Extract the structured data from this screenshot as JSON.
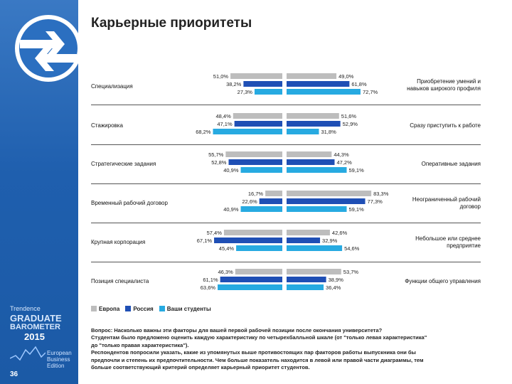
{
  "page": {
    "title": "Карьерные приоритеты",
    "page_number": "36"
  },
  "branding": {
    "line1": "Trendence",
    "line2": "GRADUATE",
    "line3": "BAROMETER",
    "year": "2015",
    "edition_line1": "European",
    "edition_line2": "Business",
    "edition_line3": "Edition"
  },
  "colors": {
    "europe": "#bdbdbd",
    "russia": "#1f4fb5",
    "students": "#27aae1",
    "sidebar": "#2563b0"
  },
  "legend": {
    "europe": "Европа",
    "russia": "Россия",
    "students": "Ваши студенты"
  },
  "chart_data": {
    "type": "bar",
    "orientation": "horizontal-diverging",
    "series_names": [
      "Европа",
      "Россия",
      "Ваши студенты"
    ],
    "groups": [
      {
        "left_label": "Специализация",
        "right_label": "Приобретение умений и\nнавыков широкого профиля",
        "left": [
          51.0,
          38.2,
          27.3
        ],
        "right": [
          49.0,
          61.8,
          72.7
        ],
        "left_text": [
          "51,0%",
          "38,2%",
          "27,3%"
        ],
        "right_text": [
          "49,0%",
          "61,8%",
          "72,7%"
        ]
      },
      {
        "left_label": "Стажировка",
        "right_label": "Сразу приступить к работе",
        "left": [
          48.4,
          47.1,
          68.2
        ],
        "right": [
          51.6,
          52.9,
          31.8
        ],
        "left_text": [
          "48,4%",
          "47,1%",
          "68,2%"
        ],
        "right_text": [
          "51,6%",
          "52,9%",
          "31,8%"
        ]
      },
      {
        "left_label": "Стратегические задания",
        "right_label": "Оперативные задания",
        "left": [
          55.7,
          52.8,
          40.9
        ],
        "right": [
          44.3,
          47.2,
          59.1
        ],
        "left_text": [
          "55,7%",
          "52,8%",
          "40,9%"
        ],
        "right_text": [
          "44,3%",
          "47,2%",
          "59,1%"
        ]
      },
      {
        "left_label": "Временный рабочий договор",
        "right_label": "Неограниченный рабочий\nдоговор",
        "left": [
          16.7,
          22.6,
          40.9
        ],
        "right": [
          83.3,
          77.3,
          59.1
        ],
        "left_text": [
          "16,7%",
          "22,6%",
          "40,9%"
        ],
        "right_text": [
          "83,3%",
          "77,3%",
          "59,1%"
        ]
      },
      {
        "left_label": "Крупная корпорация",
        "right_label": "Небольшое или среднее\nпредприятие",
        "left": [
          57.4,
          67.1,
          45.4
        ],
        "right": [
          42.6,
          32.9,
          54.6
        ],
        "left_text": [
          "57,4%",
          "67,1%",
          "45,4%"
        ],
        "right_text": [
          "42,6%",
          "32,9%",
          "54,6%"
        ]
      },
      {
        "left_label": "Позиция специалиста",
        "right_label": "Функции общего управления",
        "left": [
          46.3,
          61.1,
          63.6
        ],
        "right": [
          53.7,
          38.9,
          36.4
        ],
        "left_text": [
          "46,3%",
          "61,1%",
          "63,6%"
        ],
        "right_text": [
          "53,7%",
          "38,9%",
          "36,4%"
        ]
      }
    ]
  },
  "note": {
    "line1": "Вопрос: Насколько важны эти факторы для вашей первой рабочей позиции после окончания университета?",
    "line2": "Студентам было предложено оценить каждую характеристику по четырехбалльной шкале (от \"только левая характеристика\"",
    "line3": "до \"только правая характеристика\").",
    "line4": "Респондентов попросили указать, какие из упомянутых выше противостоящих пар факторов работы выпускника они бы",
    "line5": "предпочли и степень их предпочтительности. Чем больше показатель находится в левой или правой части диаграммы, тем",
    "line6": "больше соответствующий критерий определяет карьерный приоритет студентов."
  }
}
